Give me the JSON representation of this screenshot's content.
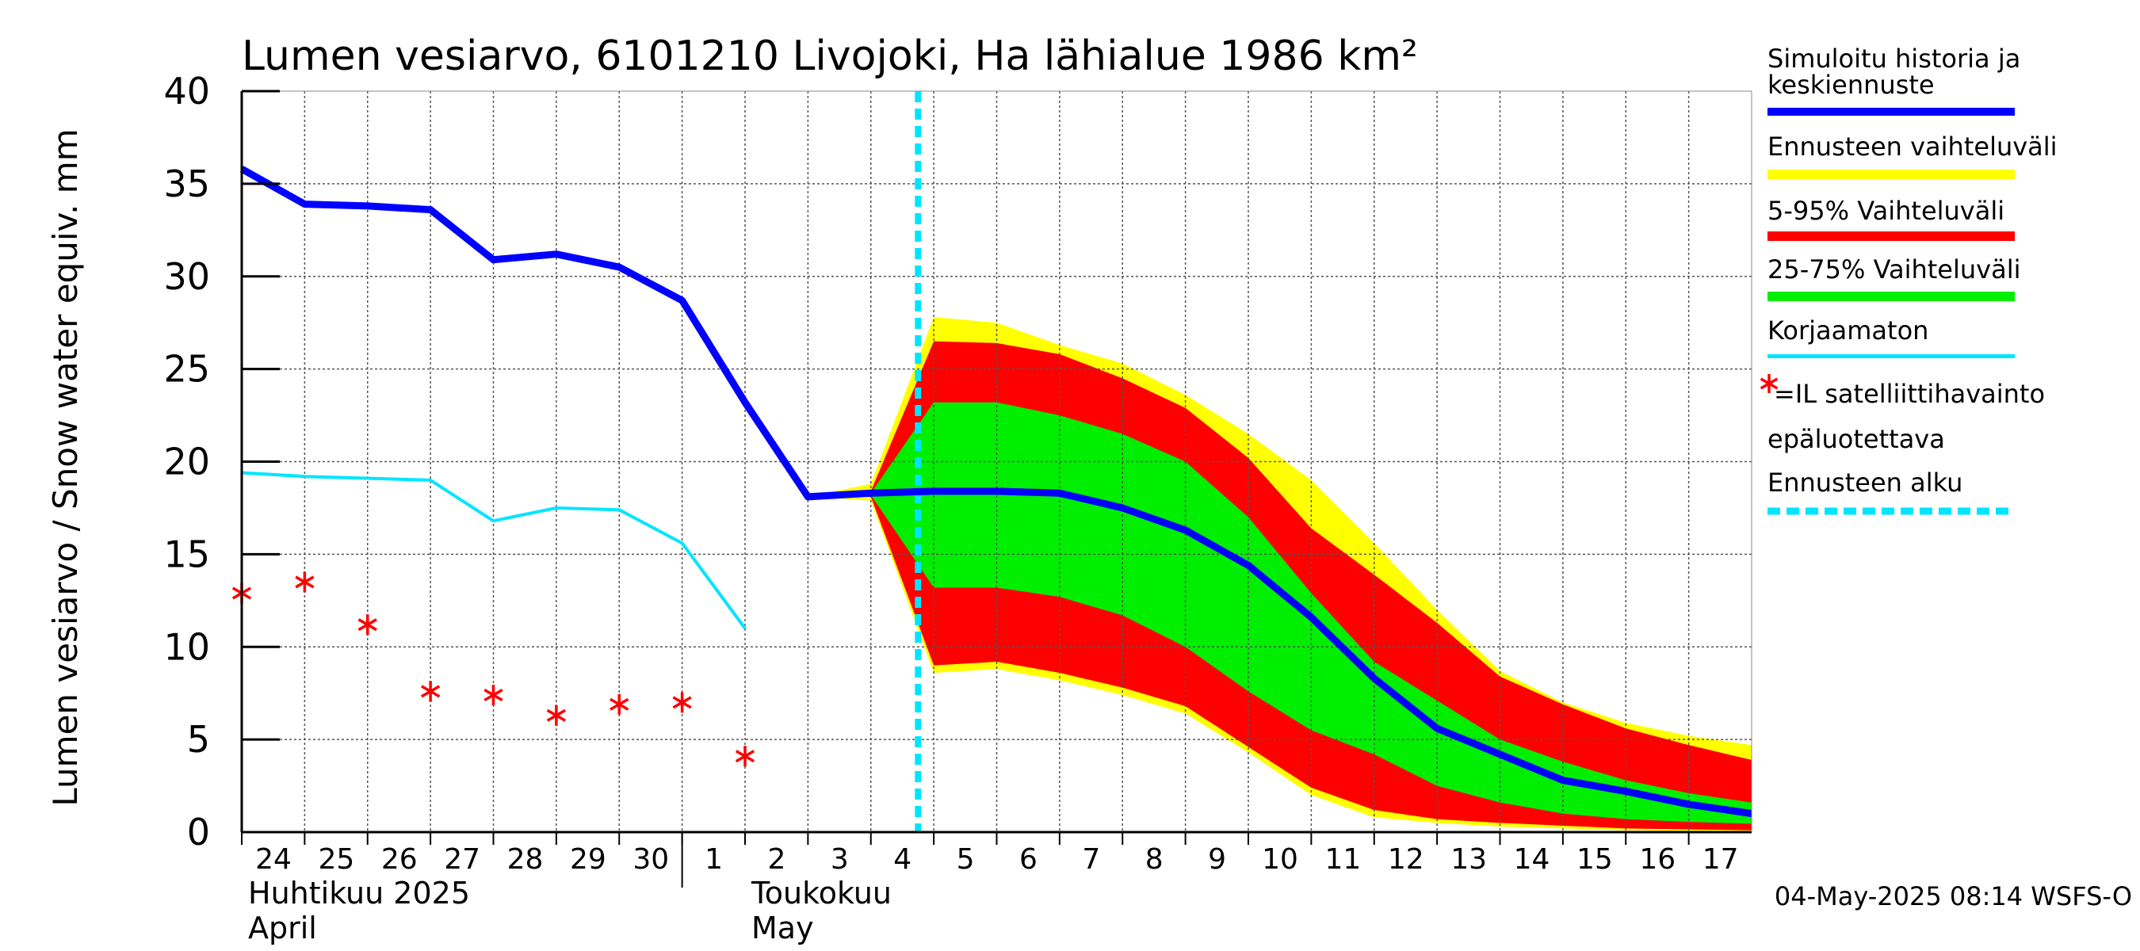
{
  "chart_data": {
    "type": "area",
    "title": "Lumen vesiarvo, 6101210 Livojoki, Ha lähialue 1986 km²",
    "ylabel": "Lumen vesiarvo / Snow water equiv.    mm",
    "ylim": [
      0,
      40
    ],
    "xlim": [
      0,
      24
    ],
    "yticks": [
      0,
      5,
      10,
      15,
      20,
      25,
      30,
      35,
      40
    ],
    "ytick_labels": [
      "0",
      "5",
      "10",
      "15",
      "20",
      "25",
      "30",
      "35",
      "40"
    ],
    "x_tick_labels": [
      "24",
      "25",
      "26",
      "27",
      "28",
      "29",
      "30",
      "1",
      "2",
      "3",
      "4",
      "5",
      "6",
      "7",
      "8",
      "9",
      "10",
      "11",
      "12",
      "13",
      "14",
      "15",
      "16",
      "17"
    ],
    "month_labels": [
      {
        "fi": "Huhtikuu  2025",
        "en": "April",
        "x": 0
      },
      {
        "fi": "Toukokuu",
        "en": "May",
        "x": 8
      }
    ],
    "month_divider_x": 7,
    "forecast_start_x": 10.75,
    "footer": "04-May-2025 08:14 WSFS-O",
    "grid": true,
    "series": [
      {
        "name": "Simuloitu historia ja keskiennuste",
        "color": "#0000ff",
        "x": [
          0,
          1,
          2,
          3,
          4,
          5,
          6,
          7,
          8,
          9,
          10,
          11,
          12,
          13,
          14,
          15,
          16,
          17,
          18,
          19,
          20,
          21,
          22,
          23,
          24
        ],
        "values": [
          35.8,
          33.9,
          33.8,
          33.6,
          30.9,
          31.2,
          30.5,
          28.7,
          23.2,
          18.1,
          18.3,
          18.4,
          18.4,
          18.3,
          17.5,
          16.3,
          14.4,
          11.6,
          8.3,
          5.6,
          4.2,
          2.8,
          2.2,
          1.5,
          1.0
        ]
      },
      {
        "name": "Korjaamaton",
        "color": "#00e5ff",
        "x": [
          0,
          1,
          2,
          3,
          4,
          5,
          6,
          7,
          8
        ],
        "values": [
          19.4,
          19.2,
          19.1,
          19.0,
          16.8,
          17.5,
          17.4,
          15.6,
          11.0
        ]
      },
      {
        "name": "IL satelliittihavainto epäluotettava",
        "color": "#ff0000",
        "marker": "*",
        "x": [
          0,
          1,
          2,
          3,
          4,
          5,
          6,
          7,
          8
        ],
        "values": [
          12.9,
          13.5,
          11.2,
          7.6,
          7.4,
          6.3,
          6.9,
          7.0,
          4.1
        ]
      }
    ],
    "bands": [
      {
        "name": "Ennusteen vaihteluväli",
        "color": "#ffff00",
        "x": [
          9,
          10,
          11,
          12,
          13,
          14,
          15,
          16,
          17,
          18,
          19,
          20,
          21,
          22,
          23,
          24
        ],
        "upper": [
          18.1,
          18.8,
          27.8,
          27.5,
          26.3,
          25.3,
          23.6,
          21.5,
          19.0,
          15.6,
          12.0,
          8.7,
          7.0,
          5.9,
          5.2,
          4.7
        ],
        "lower": [
          18.1,
          17.9,
          8.6,
          8.8,
          8.2,
          7.4,
          6.4,
          4.3,
          2.0,
          0.8,
          0.5,
          0.3,
          0.2,
          0.1,
          0.05,
          0.0
        ]
      },
      {
        "name": "5-95% Vaihteluväli",
        "color": "#ff0000",
        "x": [
          9,
          10,
          11,
          12,
          13,
          14,
          15,
          16,
          17,
          18,
          19,
          20,
          21,
          22,
          23,
          24
        ],
        "upper": [
          18.1,
          18.4,
          26.5,
          26.4,
          25.8,
          24.5,
          22.9,
          20.2,
          16.4,
          13.9,
          11.3,
          8.4,
          6.9,
          5.6,
          4.7,
          3.9
        ],
        "lower": [
          18.1,
          18.1,
          9.0,
          9.2,
          8.6,
          7.8,
          6.8,
          4.6,
          2.4,
          1.2,
          0.7,
          0.5,
          0.35,
          0.2,
          0.15,
          0.1
        ]
      },
      {
        "name": "25-75% Vaihteluväli",
        "color": "#00ee00",
        "x": [
          9,
          10,
          11,
          12,
          13,
          14,
          15,
          16,
          17,
          18,
          19,
          20,
          21,
          22,
          23,
          24
        ],
        "upper": [
          18.1,
          18.3,
          23.2,
          23.2,
          22.5,
          21.5,
          20.0,
          17.0,
          12.9,
          9.2,
          7.1,
          5.0,
          3.8,
          2.8,
          2.1,
          1.6
        ],
        "lower": [
          18.1,
          18.2,
          13.2,
          13.2,
          12.7,
          11.7,
          10.0,
          7.6,
          5.5,
          4.2,
          2.5,
          1.6,
          1.0,
          0.7,
          0.55,
          0.45
        ]
      }
    ]
  },
  "legend": {
    "mean_label_1": "Simuloitu historia ja",
    "mean_label_2": "keskiennuste",
    "range_label": "Ennusteen vaihteluväli",
    "p5_95_label": "5-95% Vaihteluväli",
    "p25_75_label": "25-75% Vaihteluväli",
    "uncorrected_label": "Korjaamaton",
    "satellite_label_1": "=IL satelliittihavainto",
    "satellite_label_2": "epäluotettava",
    "forecast_start_label": "Ennusteen alku",
    "colors": {
      "mean": "#0000ff",
      "range": "#ffff00",
      "p5_95": "#ff0000",
      "p25_75": "#00ee00",
      "uncorrected": "#00e5ff",
      "satellite": "#ff0000",
      "forecast_start": "#00e5ff"
    }
  }
}
